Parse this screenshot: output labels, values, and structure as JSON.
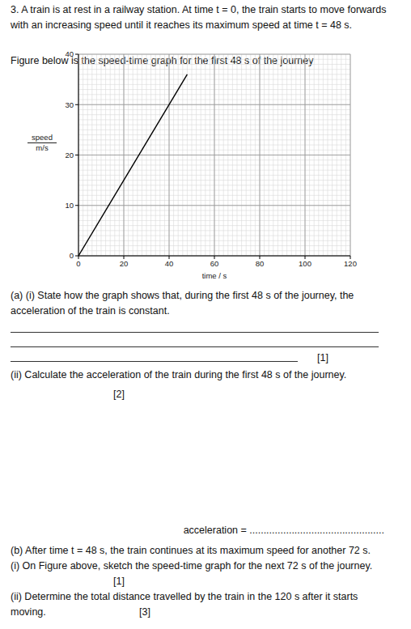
{
  "question": {
    "number": "3.",
    "text": "A train is at rest in a railway station. At time t = 0, the train starts to move forwards with an increasing speed until it reaches its maximum speed at time t = 48 s.",
    "figure_caption": "Figure below is the speed-time graph for the first 48 s of the journey"
  },
  "chart_data": {
    "type": "line",
    "x_label": "time / s",
    "y_label": "speed",
    "y_unit": "m/s",
    "x": [
      0,
      48
    ],
    "values": [
      0,
      36
    ],
    "color": "#000000",
    "xlim": [
      0,
      120
    ],
    "ylim": [
      0,
      40
    ],
    "xticks": [
      0,
      20,
      40,
      60,
      80,
      100,
      120
    ],
    "yticks": [
      0,
      10,
      20,
      30,
      40
    ],
    "grid": true
  },
  "parts": {
    "a_i": {
      "label": "(a) (i)",
      "text": "State how the graph shows that, during the first 48 s of the journey, the acceleration of the train is constant.",
      "marks": "[1]"
    },
    "a_ii": {
      "label": "(ii)",
      "text": "Calculate the acceleration of the train during the first 48 s of the journey.",
      "marks": "[2]",
      "answer": "acceleration = ................................................"
    },
    "b_intro": {
      "label": "(b)",
      "text": "After time t = 48 s, the train continues at its maximum speed for another 72 s."
    },
    "b_i": {
      "label": "(i)",
      "text": "On Figure above, sketch the speed-time graph for the next 72 s of the journey.",
      "marks": "[1]"
    },
    "b_ii": {
      "label": "(ii)",
      "text": "Determine the total distance travelled by the train in the 120 s after it starts moving.",
      "marks": "[3]"
    }
  }
}
